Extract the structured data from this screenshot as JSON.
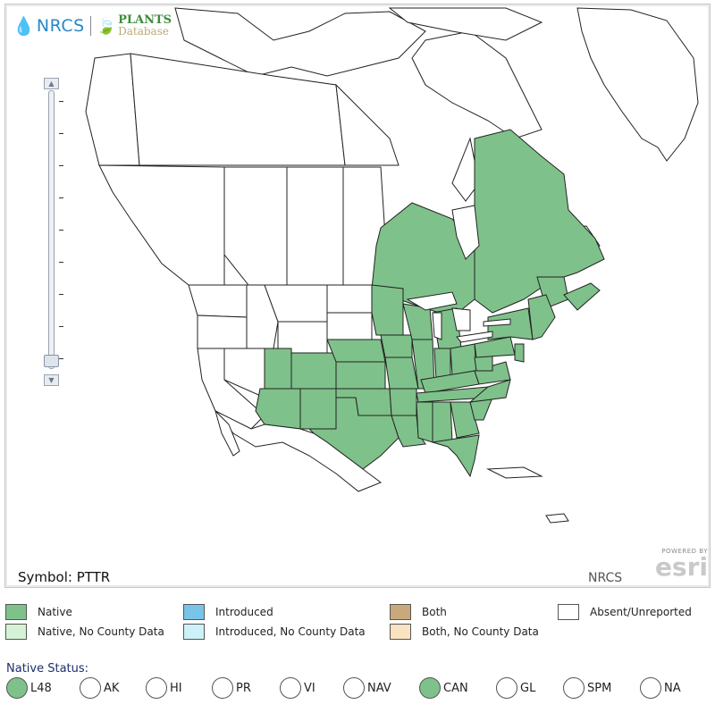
{
  "logo": {
    "left": "NRCS",
    "right_top": "PLANTS",
    "right_bottom": "Database"
  },
  "map": {
    "symbol_label": "Symbol: PTTR",
    "credit": "NRCS",
    "esri_powered": "POWERED BY",
    "esri_brand": "esri"
  },
  "colors": {
    "native": "#7fc18a",
    "native_no_county": "#d4f3d4",
    "introduced": "#79c4e8",
    "introduced_no_county": "#cdf1f8",
    "both": "#c9a97c",
    "both_no_county": "#f9e3c0",
    "absent": "#ffffff",
    "border": "#222222"
  },
  "legend": [
    {
      "label": "Native",
      "color": "#7fc18a"
    },
    {
      "label": "Native, No County Data",
      "color": "#d4f3d4"
    },
    {
      "label": "Introduced",
      "color": "#79c4e8"
    },
    {
      "label": "Introduced, No County Data",
      "color": "#cdf1f8"
    },
    {
      "label": "Both",
      "color": "#c9a97c"
    },
    {
      "label": "Both, No County Data",
      "color": "#f9e3c0"
    },
    {
      "label": "Absent/Unreported",
      "color": "#ffffff"
    }
  ],
  "native_status": {
    "label": "Native Status:",
    "options": [
      {
        "label": "L48",
        "selected": true
      },
      {
        "label": "AK",
        "selected": false
      },
      {
        "label": "HI",
        "selected": false
      },
      {
        "label": "PR",
        "selected": false
      },
      {
        "label": "VI",
        "selected": false
      },
      {
        "label": "NAV",
        "selected": false
      },
      {
        "label": "CAN",
        "selected": true
      },
      {
        "label": "GL",
        "selected": false
      },
      {
        "label": "SPM",
        "selected": false
      },
      {
        "label": "NA",
        "selected": false
      }
    ]
  },
  "zoom": {
    "in_icon": "zoom-in-icon",
    "out_icon": "zoom-out-icon",
    "level": 0.1
  }
}
